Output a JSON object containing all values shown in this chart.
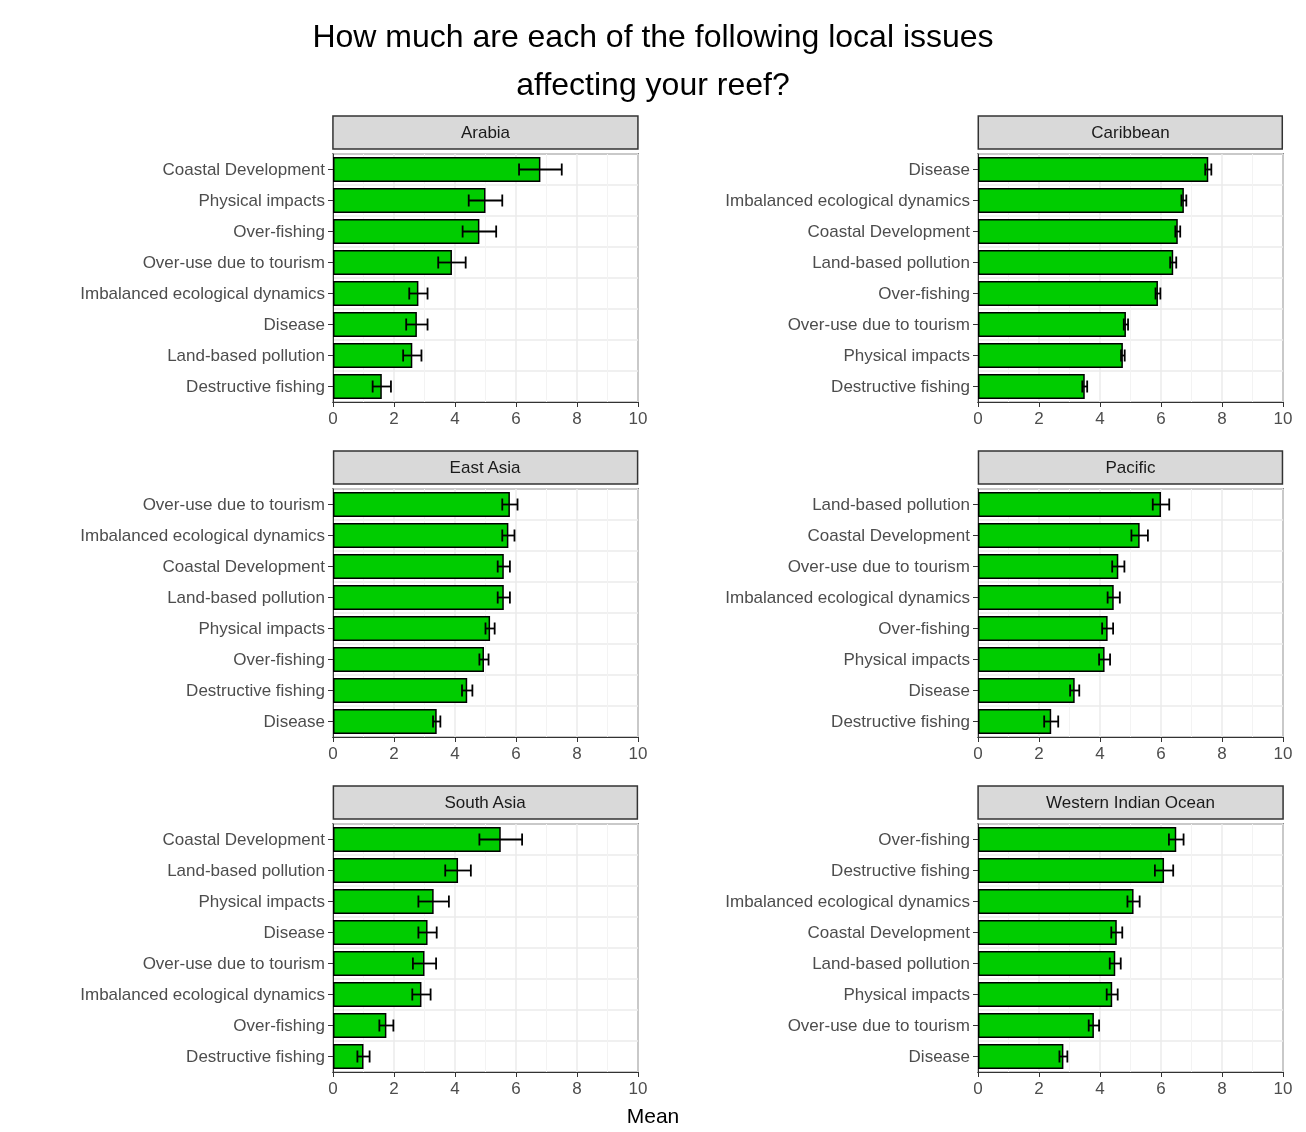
{
  "chart_data": [
    {
      "type": "other",
      "title": "How much are each of the following local issues affecting your reef?",
      "annotations": [
        "Mean"
      ]
    },
    {
      "type": "bar",
      "orientation": "horizontal",
      "title": "Arabia",
      "categories": [
        "Coastal Development",
        "Physical impacts",
        "Over-fishing",
        "Over-use due to tourism",
        "Imbalanced ecological dynamics",
        "Disease",
        "Land-based pollution",
        "Destructive fishing"
      ],
      "values": [
        6.8,
        5.0,
        4.8,
        3.9,
        2.8,
        2.75,
        2.6,
        1.6
      ],
      "errors": [
        0.7,
        0.55,
        0.55,
        0.45,
        0.3,
        0.35,
        0.3,
        0.3
      ],
      "color": "#00cc00",
      "xlim": [
        0,
        10
      ],
      "xticks": [
        0,
        2,
        4,
        6,
        8,
        10
      ],
      "grid": true
    },
    {
      "type": "bar",
      "orientation": "horizontal",
      "title": "Caribbean",
      "categories": [
        "Disease",
        "Imbalanced ecological dynamics",
        "Coastal Development",
        "Land-based pollution",
        "Over-fishing",
        "Over-use due to tourism",
        "Physical impacts",
        "Destructive fishing"
      ],
      "values": [
        7.55,
        6.75,
        6.55,
        6.4,
        5.9,
        4.85,
        4.75,
        3.5
      ],
      "errors": [
        0.1,
        0.08,
        0.08,
        0.1,
        0.08,
        0.07,
        0.06,
        0.08
      ],
      "color": "#00cc00",
      "xlim": [
        0,
        10
      ],
      "xticks": [
        0,
        2,
        4,
        6,
        8,
        10
      ],
      "grid": true
    },
    {
      "type": "bar",
      "orientation": "horizontal",
      "title": "East Asia",
      "categories": [
        "Over-use due to tourism",
        "Imbalanced ecological dynamics",
        "Coastal Development",
        "Land-based pollution",
        "Physical impacts",
        "Over-fishing",
        "Destructive fishing",
        "Disease"
      ],
      "values": [
        5.8,
        5.75,
        5.6,
        5.6,
        5.15,
        4.95,
        4.4,
        3.4
      ],
      "errors": [
        0.25,
        0.2,
        0.2,
        0.2,
        0.15,
        0.15,
        0.17,
        0.12
      ],
      "color": "#00cc00",
      "xlim": [
        0,
        10
      ],
      "xticks": [
        0,
        2,
        4,
        6,
        8,
        10
      ],
      "grid": true
    },
    {
      "type": "bar",
      "orientation": "horizontal",
      "title": "Pacific",
      "categories": [
        "Land-based pollution",
        "Coastal Development",
        "Over-use due to tourism",
        "Imbalanced ecological dynamics",
        "Over-fishing",
        "Physical impacts",
        "Disease",
        "Destructive fishing"
      ],
      "values": [
        6.0,
        5.3,
        4.6,
        4.45,
        4.25,
        4.15,
        3.17,
        2.4
      ],
      "errors": [
        0.27,
        0.27,
        0.2,
        0.2,
        0.18,
        0.18,
        0.15,
        0.23
      ],
      "color": "#00cc00",
      "xlim": [
        0,
        10
      ],
      "xticks": [
        0,
        2,
        4,
        6,
        8,
        10
      ],
      "grid": true
    },
    {
      "type": "bar",
      "orientation": "horizontal",
      "title": "South Asia",
      "categories": [
        "Coastal Development",
        "Land-based pollution",
        "Physical impacts",
        "Disease",
        "Over-use due to tourism",
        "Imbalanced ecological dynamics",
        "Over-fishing",
        "Destructive fishing"
      ],
      "values": [
        5.5,
        4.1,
        3.3,
        3.1,
        3.0,
        2.9,
        1.75,
        1.0
      ],
      "errors": [
        0.7,
        0.42,
        0.5,
        0.3,
        0.38,
        0.3,
        0.23,
        0.2
      ],
      "color": "#00cc00",
      "xlim": [
        0,
        10
      ],
      "xticks": [
        0,
        2,
        4,
        6,
        8,
        10
      ],
      "grid": true
    },
    {
      "type": "bar",
      "orientation": "horizontal",
      "title": "Western Indian Ocean",
      "categories": [
        "Over-fishing",
        "Destructive fishing",
        "Imbalanced ecological dynamics",
        "Coastal Development",
        "Land-based pollution",
        "Physical impacts",
        "Over-use due to tourism",
        "Disease"
      ],
      "values": [
        6.5,
        6.1,
        5.1,
        4.55,
        4.5,
        4.4,
        3.8,
        2.8
      ],
      "errors": [
        0.24,
        0.3,
        0.2,
        0.18,
        0.18,
        0.18,
        0.17,
        0.13
      ],
      "color": "#00cc00",
      "xlim": [
        0,
        10
      ],
      "xticks": [
        0,
        2,
        4,
        6,
        8,
        10
      ],
      "grid": true
    }
  ]
}
